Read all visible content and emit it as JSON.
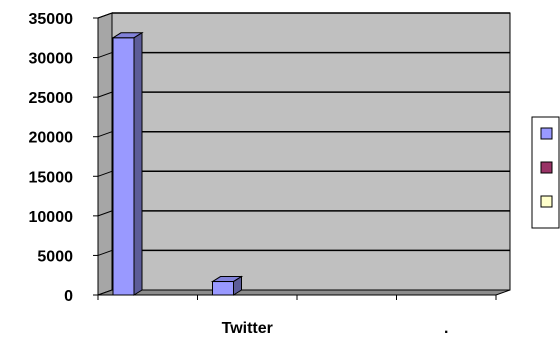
{
  "chart_data": {
    "type": "bar",
    "title": "",
    "xlabel": "",
    "ylabel": "",
    "categories": [
      "",
      "Twitter",
      "",
      "."
    ],
    "series": [
      {
        "color": "#9999ff",
        "values": [
          32500,
          1700,
          0,
          0
        ]
      },
      {
        "color": "#993366",
        "values": [
          0,
          0,
          0,
          0
        ]
      },
      {
        "color": "#ffffcc",
        "values": [
          0,
          0,
          0,
          0
        ]
      }
    ],
    "ylim": [
      0,
      35000
    ],
    "yticks": [
      0,
      5000,
      10000,
      15000,
      20000,
      25000,
      30000,
      35000
    ],
    "grid": true,
    "legend_position": "right",
    "plot_background": "#c0c0c0",
    "perspective": "3d"
  }
}
